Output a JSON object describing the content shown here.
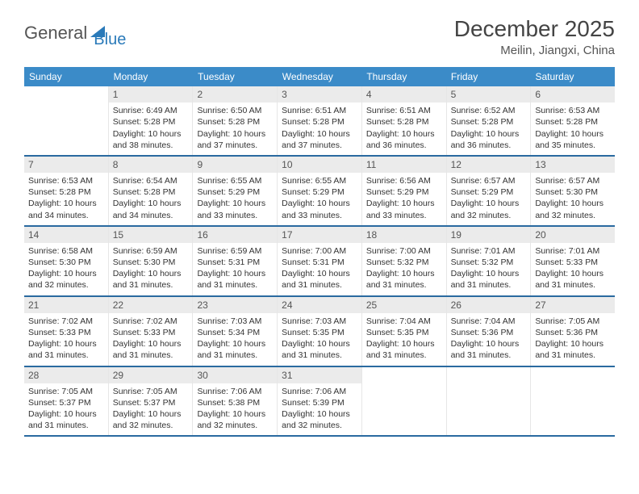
{
  "brand": {
    "part1": "General",
    "part2": "Blue"
  },
  "title": "December 2025",
  "location": "Meilin, Jiangxi, China",
  "colors": {
    "header_bg": "#3b8bc8",
    "header_text": "#ffffff",
    "row_border": "#2a6aa0",
    "daynum_bg": "#ebebeb",
    "brand_blue": "#2a7ab9"
  },
  "dayNames": [
    "Sunday",
    "Monday",
    "Tuesday",
    "Wednesday",
    "Thursday",
    "Friday",
    "Saturday"
  ],
  "weeks": [
    [
      {
        "empty": true
      },
      {
        "num": "1",
        "sunrise": "Sunrise: 6:49 AM",
        "sunset": "Sunset: 5:28 PM",
        "daylight1": "Daylight: 10 hours",
        "daylight2": "and 38 minutes."
      },
      {
        "num": "2",
        "sunrise": "Sunrise: 6:50 AM",
        "sunset": "Sunset: 5:28 PM",
        "daylight1": "Daylight: 10 hours",
        "daylight2": "and 37 minutes."
      },
      {
        "num": "3",
        "sunrise": "Sunrise: 6:51 AM",
        "sunset": "Sunset: 5:28 PM",
        "daylight1": "Daylight: 10 hours",
        "daylight2": "and 37 minutes."
      },
      {
        "num": "4",
        "sunrise": "Sunrise: 6:51 AM",
        "sunset": "Sunset: 5:28 PM",
        "daylight1": "Daylight: 10 hours",
        "daylight2": "and 36 minutes."
      },
      {
        "num": "5",
        "sunrise": "Sunrise: 6:52 AM",
        "sunset": "Sunset: 5:28 PM",
        "daylight1": "Daylight: 10 hours",
        "daylight2": "and 36 minutes."
      },
      {
        "num": "6",
        "sunrise": "Sunrise: 6:53 AM",
        "sunset": "Sunset: 5:28 PM",
        "daylight1": "Daylight: 10 hours",
        "daylight2": "and 35 minutes."
      }
    ],
    [
      {
        "num": "7",
        "sunrise": "Sunrise: 6:53 AM",
        "sunset": "Sunset: 5:28 PM",
        "daylight1": "Daylight: 10 hours",
        "daylight2": "and 34 minutes."
      },
      {
        "num": "8",
        "sunrise": "Sunrise: 6:54 AM",
        "sunset": "Sunset: 5:28 PM",
        "daylight1": "Daylight: 10 hours",
        "daylight2": "and 34 minutes."
      },
      {
        "num": "9",
        "sunrise": "Sunrise: 6:55 AM",
        "sunset": "Sunset: 5:29 PM",
        "daylight1": "Daylight: 10 hours",
        "daylight2": "and 33 minutes."
      },
      {
        "num": "10",
        "sunrise": "Sunrise: 6:55 AM",
        "sunset": "Sunset: 5:29 PM",
        "daylight1": "Daylight: 10 hours",
        "daylight2": "and 33 minutes."
      },
      {
        "num": "11",
        "sunrise": "Sunrise: 6:56 AM",
        "sunset": "Sunset: 5:29 PM",
        "daylight1": "Daylight: 10 hours",
        "daylight2": "and 33 minutes."
      },
      {
        "num": "12",
        "sunrise": "Sunrise: 6:57 AM",
        "sunset": "Sunset: 5:29 PM",
        "daylight1": "Daylight: 10 hours",
        "daylight2": "and 32 minutes."
      },
      {
        "num": "13",
        "sunrise": "Sunrise: 6:57 AM",
        "sunset": "Sunset: 5:30 PM",
        "daylight1": "Daylight: 10 hours",
        "daylight2": "and 32 minutes."
      }
    ],
    [
      {
        "num": "14",
        "sunrise": "Sunrise: 6:58 AM",
        "sunset": "Sunset: 5:30 PM",
        "daylight1": "Daylight: 10 hours",
        "daylight2": "and 32 minutes."
      },
      {
        "num": "15",
        "sunrise": "Sunrise: 6:59 AM",
        "sunset": "Sunset: 5:30 PM",
        "daylight1": "Daylight: 10 hours",
        "daylight2": "and 31 minutes."
      },
      {
        "num": "16",
        "sunrise": "Sunrise: 6:59 AM",
        "sunset": "Sunset: 5:31 PM",
        "daylight1": "Daylight: 10 hours",
        "daylight2": "and 31 minutes."
      },
      {
        "num": "17",
        "sunrise": "Sunrise: 7:00 AM",
        "sunset": "Sunset: 5:31 PM",
        "daylight1": "Daylight: 10 hours",
        "daylight2": "and 31 minutes."
      },
      {
        "num": "18",
        "sunrise": "Sunrise: 7:00 AM",
        "sunset": "Sunset: 5:32 PM",
        "daylight1": "Daylight: 10 hours",
        "daylight2": "and 31 minutes."
      },
      {
        "num": "19",
        "sunrise": "Sunrise: 7:01 AM",
        "sunset": "Sunset: 5:32 PM",
        "daylight1": "Daylight: 10 hours",
        "daylight2": "and 31 minutes."
      },
      {
        "num": "20",
        "sunrise": "Sunrise: 7:01 AM",
        "sunset": "Sunset: 5:33 PM",
        "daylight1": "Daylight: 10 hours",
        "daylight2": "and 31 minutes."
      }
    ],
    [
      {
        "num": "21",
        "sunrise": "Sunrise: 7:02 AM",
        "sunset": "Sunset: 5:33 PM",
        "daylight1": "Daylight: 10 hours",
        "daylight2": "and 31 minutes."
      },
      {
        "num": "22",
        "sunrise": "Sunrise: 7:02 AM",
        "sunset": "Sunset: 5:33 PM",
        "daylight1": "Daylight: 10 hours",
        "daylight2": "and 31 minutes."
      },
      {
        "num": "23",
        "sunrise": "Sunrise: 7:03 AM",
        "sunset": "Sunset: 5:34 PM",
        "daylight1": "Daylight: 10 hours",
        "daylight2": "and 31 minutes."
      },
      {
        "num": "24",
        "sunrise": "Sunrise: 7:03 AM",
        "sunset": "Sunset: 5:35 PM",
        "daylight1": "Daylight: 10 hours",
        "daylight2": "and 31 minutes."
      },
      {
        "num": "25",
        "sunrise": "Sunrise: 7:04 AM",
        "sunset": "Sunset: 5:35 PM",
        "daylight1": "Daylight: 10 hours",
        "daylight2": "and 31 minutes."
      },
      {
        "num": "26",
        "sunrise": "Sunrise: 7:04 AM",
        "sunset": "Sunset: 5:36 PM",
        "daylight1": "Daylight: 10 hours",
        "daylight2": "and 31 minutes."
      },
      {
        "num": "27",
        "sunrise": "Sunrise: 7:05 AM",
        "sunset": "Sunset: 5:36 PM",
        "daylight1": "Daylight: 10 hours",
        "daylight2": "and 31 minutes."
      }
    ],
    [
      {
        "num": "28",
        "sunrise": "Sunrise: 7:05 AM",
        "sunset": "Sunset: 5:37 PM",
        "daylight1": "Daylight: 10 hours",
        "daylight2": "and 31 minutes."
      },
      {
        "num": "29",
        "sunrise": "Sunrise: 7:05 AM",
        "sunset": "Sunset: 5:37 PM",
        "daylight1": "Daylight: 10 hours",
        "daylight2": "and 32 minutes."
      },
      {
        "num": "30",
        "sunrise": "Sunrise: 7:06 AM",
        "sunset": "Sunset: 5:38 PM",
        "daylight1": "Daylight: 10 hours",
        "daylight2": "and 32 minutes."
      },
      {
        "num": "31",
        "sunrise": "Sunrise: 7:06 AM",
        "sunset": "Sunset: 5:39 PM",
        "daylight1": "Daylight: 10 hours",
        "daylight2": "and 32 minutes."
      },
      {
        "empty": true
      },
      {
        "empty": true
      },
      {
        "empty": true
      }
    ]
  ]
}
